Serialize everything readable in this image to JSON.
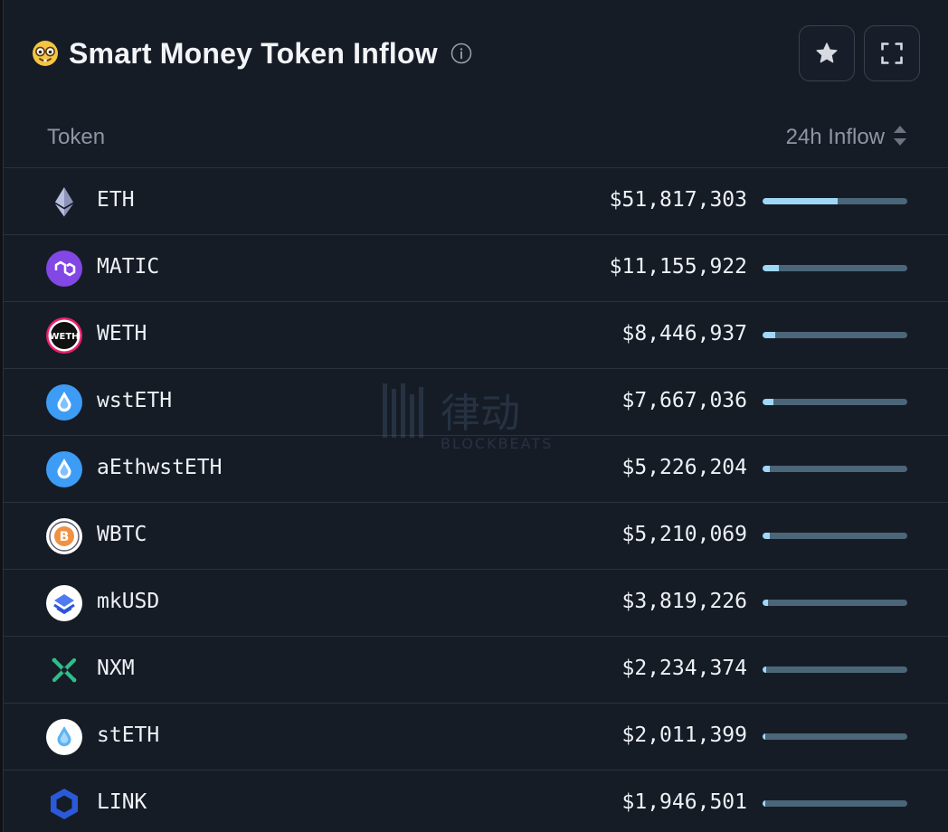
{
  "header": {
    "title": "Smart Money Token Inflow",
    "emoji_icon": "nerd-face-icon",
    "info_icon": "info-circle-icon",
    "favorite_icon": "star-icon",
    "fullscreen_icon": "expand-icon"
  },
  "columns": {
    "token": "Token",
    "inflow": "24h Inflow"
  },
  "colors": {
    "bar_track": "#4b6678",
    "bar_fill": "#9fd8f7",
    "background": "#161c26"
  },
  "watermark": {
    "cn": "律动",
    "en": "BLOCKBEATS"
  },
  "rows": [
    {
      "symbol": "ETH",
      "value": "$51,817,303",
      "fraction": 0.52,
      "icon": "eth-icon"
    },
    {
      "symbol": "MATIC",
      "value": "$11,155,922",
      "fraction": 0.11,
      "icon": "matic-icon"
    },
    {
      "symbol": "WETH",
      "value": "$8,446,937",
      "fraction": 0.085,
      "icon": "weth-icon"
    },
    {
      "symbol": "wstETH",
      "value": "$7,667,036",
      "fraction": 0.077,
      "icon": "wsteth-icon"
    },
    {
      "symbol": "aEthwstETH",
      "value": "$5,226,204",
      "fraction": 0.052,
      "icon": "aethwsteth-icon"
    },
    {
      "symbol": "WBTC",
      "value": "$5,210,069",
      "fraction": 0.052,
      "icon": "wbtc-icon"
    },
    {
      "symbol": "mkUSD",
      "value": "$3,819,226",
      "fraction": 0.038,
      "icon": "mkusd-icon"
    },
    {
      "symbol": "NXM",
      "value": "$2,234,374",
      "fraction": 0.022,
      "icon": "nxm-icon"
    },
    {
      "symbol": "stETH",
      "value": "$2,011,399",
      "fraction": 0.02,
      "icon": "steth-icon"
    },
    {
      "symbol": "LINK",
      "value": "$1,946,501",
      "fraction": 0.019,
      "icon": "link-icon"
    }
  ]
}
